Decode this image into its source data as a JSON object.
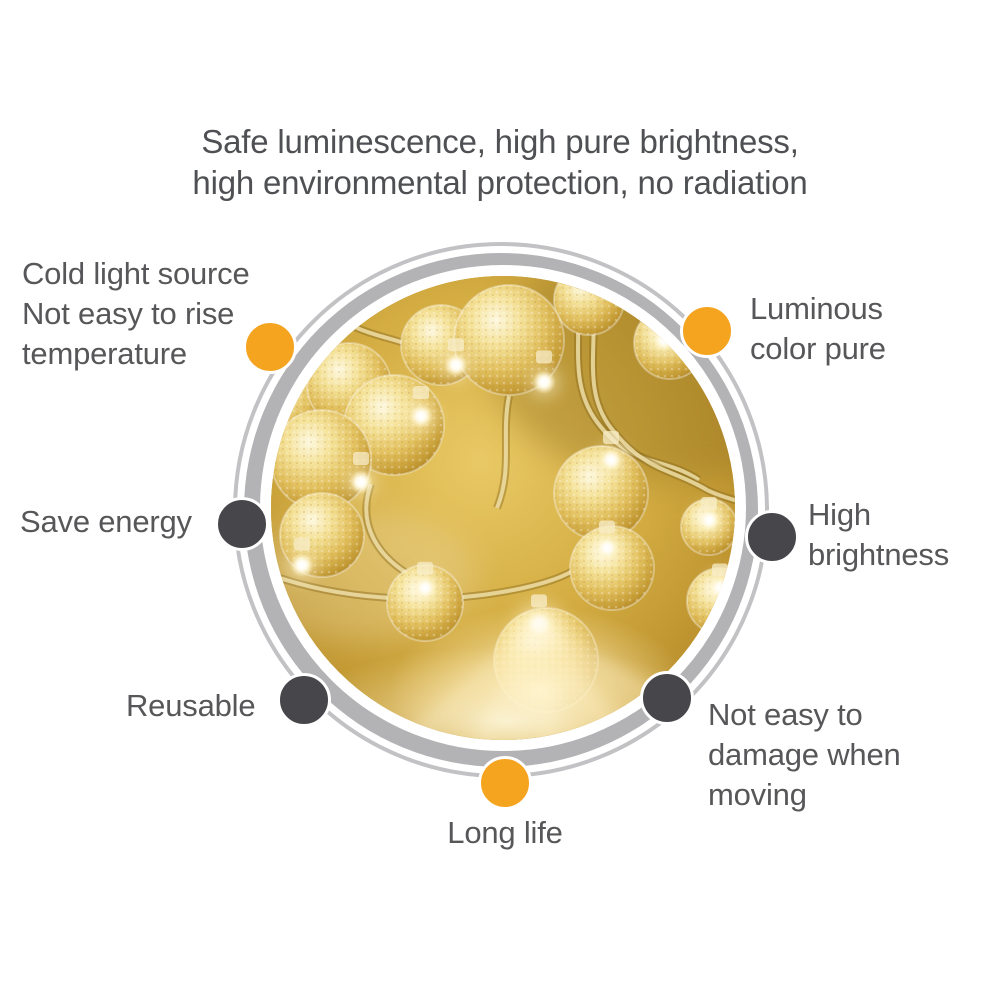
{
  "title": {
    "text": "Safe luminescence, high pure brightness,\nhigh environmental protection, no radiation"
  },
  "features": {
    "cold_light": {
      "label": "Cold light source\nNot easy to rise\ntemperature",
      "dot_color": "#F5A41F"
    },
    "luminous": {
      "label": "Luminous\ncolor pure",
      "dot_color": "#F5A41F"
    },
    "save_energy": {
      "label": "Save energy",
      "dot_color": "#47464B"
    },
    "high_brightness": {
      "label": "High\nbrightness",
      "dot_color": "#47464B"
    },
    "reusable": {
      "label": "Reusable",
      "dot_color": "#47464B"
    },
    "no_damage": {
      "label": "Not easy to\ndamage when\nmoving",
      "dot_color": "#47464B"
    },
    "long_life": {
      "label": "Long life",
      "dot_color": "#F5A41F"
    }
  },
  "colors": {
    "accent_orange": "#F5A41F",
    "dot_gray": "#47464B",
    "ring_gray": "#B3B3B6",
    "ring_outline_gray": "#C2C2C5",
    "text_gray": "#57575A",
    "photo_gold": "#D2AB41"
  },
  "photo": {
    "name": "warm-white-led-crystal-bubble-ball-string-lights"
  }
}
